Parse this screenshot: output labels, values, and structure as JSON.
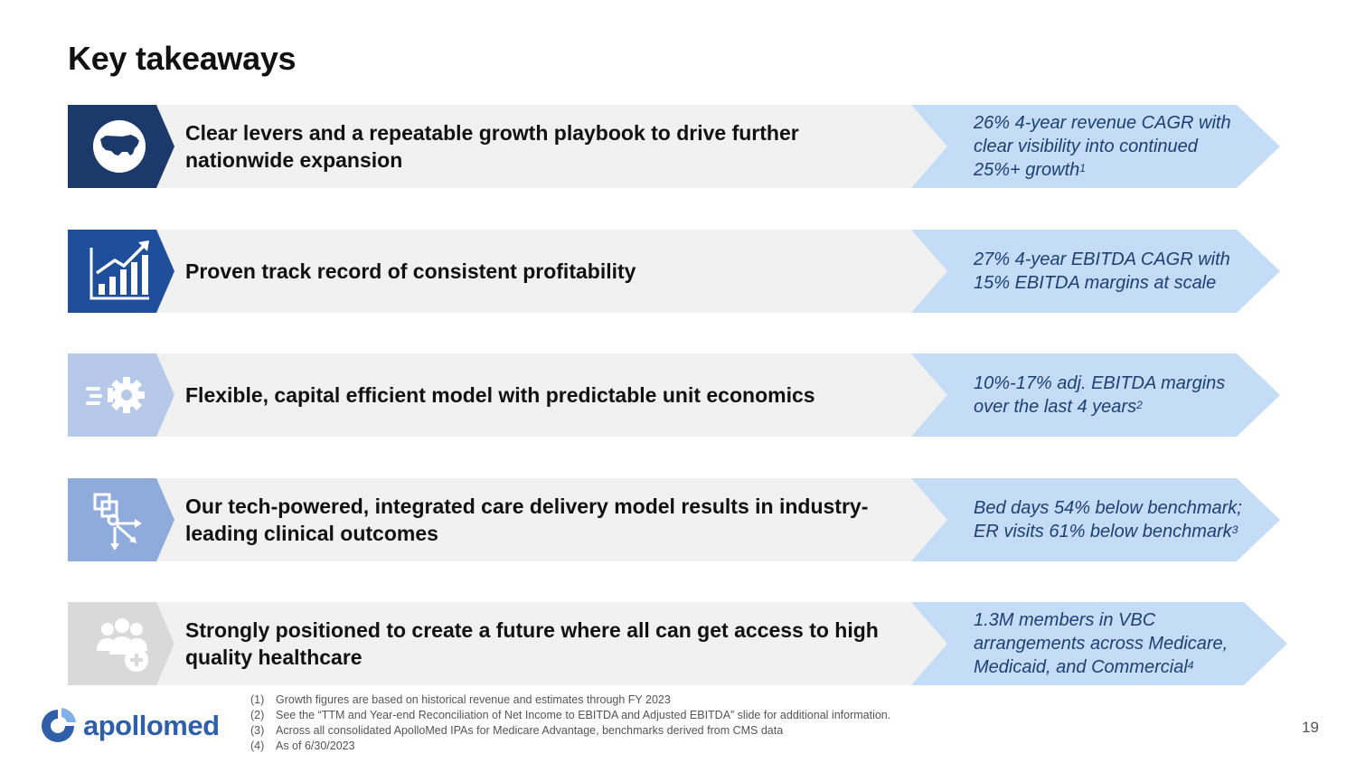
{
  "title": "Key takeaways",
  "rows": [
    {
      "icon": "usa-map-icon",
      "color": "#1b3a6b",
      "text": "Clear levers and a repeatable growth playbook to drive further nationwide expansion",
      "stat": "26% 4-year revenue CAGR with clear visibility into continued 25%+ growth",
      "note": "1"
    },
    {
      "icon": "growth-chart-icon",
      "color": "#1f4e9a",
      "text": "Proven track record of consistent profitability",
      "stat": "27% 4-year EBITDA CAGR with 15% EBITDA margins at scale",
      "note": ""
    },
    {
      "icon": "gear-speed-icon",
      "color": "#b7c9e8",
      "text": "Flexible, capital efficient model with predictable unit economics",
      "stat": "10%-17% adj. EBITDA margins over the last 4 years",
      "note": "2"
    },
    {
      "icon": "integrated-network-icon",
      "color": "#8fabdc",
      "text": "Our tech-powered, integrated care delivery model results in industry-leading clinical outcomes",
      "stat": "Bed days 54% below benchmark; ER visits 61% below benchmark",
      "note": "3"
    },
    {
      "icon": "people-plus-icon",
      "color": "#d9d9d9",
      "text": "Strongly positioned to create a future where all can get access to high quality healthcare",
      "stat": "1.3M members in VBC arrangements across Medicare, Medicaid, and Commercial",
      "note": "4"
    }
  ],
  "chevron_color": "#c5dcf7",
  "footnotes": [
    {
      "num": "(1)",
      "text": "Growth figures are based on historical revenue and estimates through FY 2023"
    },
    {
      "num": "(2)",
      "text": "See the “TTM and Year-end Reconciliation of Net Income to EBITDA and Adjusted EBITDA” slide for additional information."
    },
    {
      "num": "(3)",
      "text": "Across all consolidated ApolloMed IPAs for Medicare Advantage, benchmarks derived from CMS data"
    },
    {
      "num": "(4)",
      "text": "As of 6/30/2023"
    }
  ],
  "logo": {
    "text": "apollomed",
    "icon": "apollomed-logo-icon"
  },
  "page_number": "19"
}
